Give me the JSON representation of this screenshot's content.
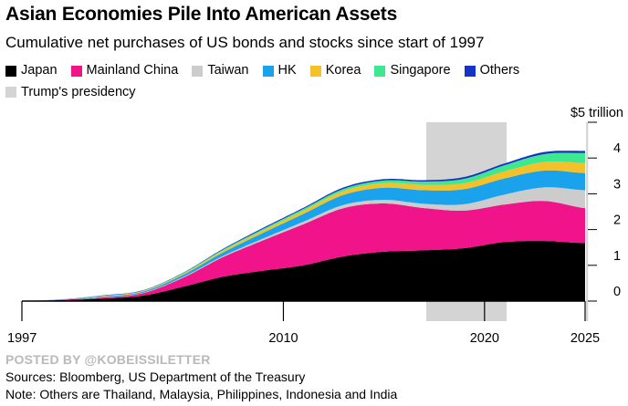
{
  "chart_data": {
    "type": "area",
    "title": "Asian Economies Pile Into American Assets",
    "subtitle": "Cumulative net purchases of US bonds and stocks since start of 1997",
    "unit_label": "$5 trillion",
    "stacked": true,
    "x": [
      1997,
      1999,
      2001,
      2003,
      2005,
      2007,
      2009,
      2011,
      2013,
      2015,
      2017,
      2019,
      2021,
      2023,
      2025
    ],
    "xlim": [
      1997,
      2025
    ],
    "x_ticks": [
      "1997",
      "2010",
      "2020",
      "2025"
    ],
    "ylim": [
      0,
      5
    ],
    "y_ticks": [
      "0",
      "1",
      "2",
      "3",
      "4"
    ],
    "series": [
      {
        "name": "Japan",
        "color": "#000000",
        "values": [
          0.0,
          0.03,
          0.07,
          0.15,
          0.4,
          0.68,
          0.85,
          1.0,
          1.25,
          1.38,
          1.42,
          1.48,
          1.65,
          1.68,
          1.62
        ]
      },
      {
        "name": "Mainland China",
        "color": "#f0138a",
        "values": [
          0.0,
          0.01,
          0.03,
          0.07,
          0.25,
          0.55,
          0.85,
          1.15,
          1.35,
          1.35,
          1.18,
          1.05,
          1.05,
          1.12,
          0.98
        ]
      },
      {
        "name": "Taiwan",
        "color": "#cccccc",
        "values": [
          0.0,
          0.0,
          0.01,
          0.01,
          0.02,
          0.03,
          0.05,
          0.07,
          0.09,
          0.1,
          0.12,
          0.18,
          0.28,
          0.38,
          0.5
        ]
      },
      {
        "name": "HK",
        "color": "#1aa3ec",
        "values": [
          0.0,
          0.01,
          0.02,
          0.03,
          0.06,
          0.1,
          0.16,
          0.22,
          0.28,
          0.34,
          0.38,
          0.42,
          0.45,
          0.47,
          0.48
        ]
      },
      {
        "name": "Korea",
        "color": "#f5c12b",
        "values": [
          0.0,
          0.0,
          0.01,
          0.02,
          0.03,
          0.05,
          0.07,
          0.09,
          0.11,
          0.13,
          0.15,
          0.17,
          0.2,
          0.24,
          0.28
        ]
      },
      {
        "name": "Singapore",
        "color": "#3ee88f",
        "values": [
          0.0,
          0.0,
          0.01,
          0.01,
          0.02,
          0.03,
          0.04,
          0.05,
          0.06,
          0.07,
          0.09,
          0.12,
          0.17,
          0.22,
          0.28
        ]
      },
      {
        "name": "Others",
        "color": "#1434c8",
        "values": [
          0.0,
          0.0,
          0.01,
          0.01,
          0.01,
          0.02,
          0.03,
          0.03,
          0.04,
          0.04,
          0.04,
          0.05,
          0.05,
          0.06,
          0.06
        ]
      }
    ],
    "shaded_periods": [
      {
        "label": "Trump's presidency",
        "color": "#d4d4d4",
        "start": 2017.1,
        "end": 2021.1
      },
      {
        "label": "",
        "color": "#d4d4d4",
        "start": 2025.05,
        "end": 2025.15
      }
    ],
    "legend_position": "top-left"
  },
  "footer": {
    "watermark": "POSTED BY @KOBEISSILETTER",
    "source": "Sources: Bloomberg, US Department of the Treasury",
    "note": "Note: Others are Thailand, Malaysia, Philippines, Indonesia and India"
  }
}
